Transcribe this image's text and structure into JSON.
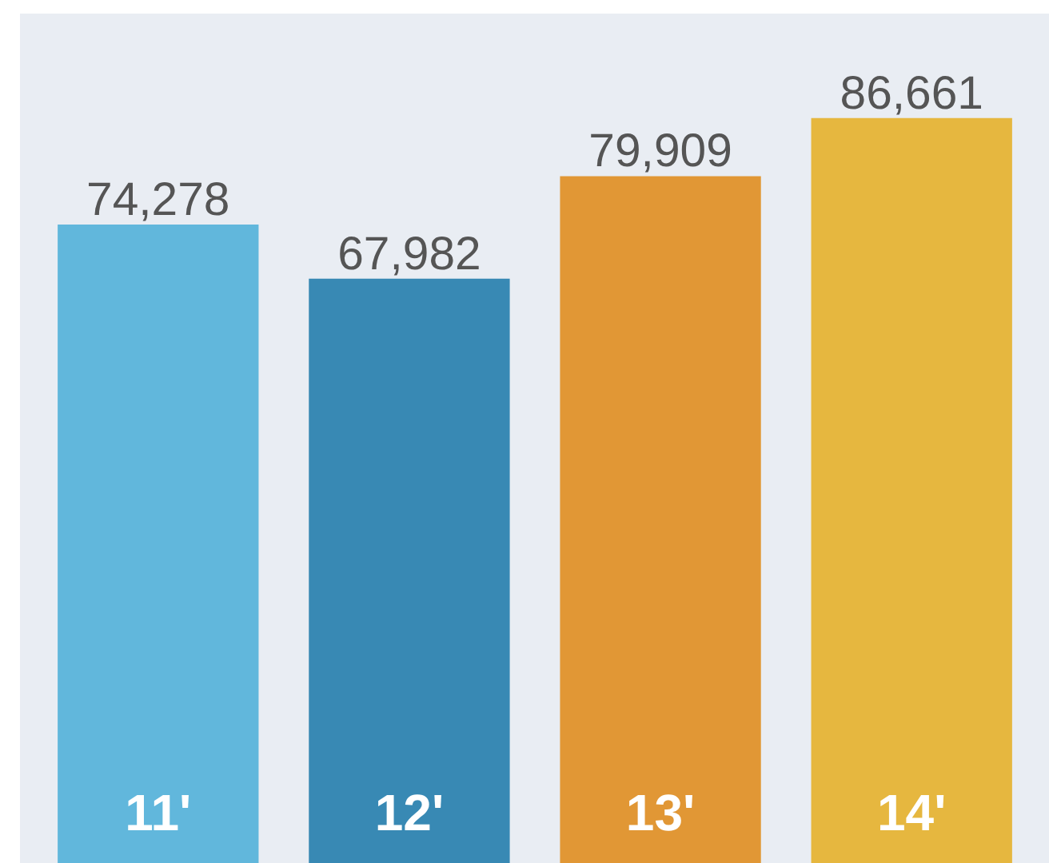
{
  "chart_data": {
    "type": "bar",
    "categories": [
      "11'",
      "12'",
      "13'",
      "14'"
    ],
    "values": [
      74278,
      67982,
      79909,
      86661
    ],
    "colors": [
      "#5ab4da",
      "#2e84b0",
      "#e0922a",
      "#e6b435"
    ],
    "value_labels": [
      "74,278",
      "67,982",
      "79,909",
      "86,661"
    ],
    "grid": false
  }
}
